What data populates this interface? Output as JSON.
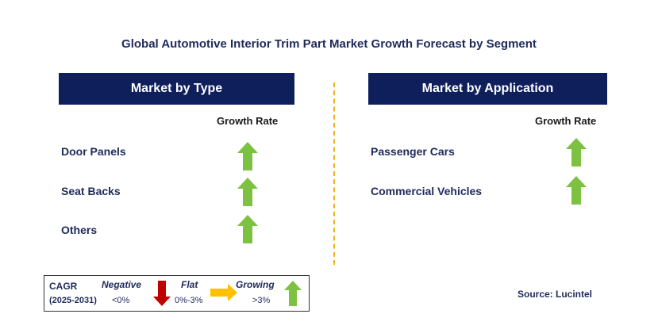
{
  "title": "Global Automotive Interior Trim Part Market Growth Forecast by Segment",
  "left_panel": {
    "header": "Market by Type",
    "growth_rate_label": "Growth Rate",
    "rows": [
      {
        "label": "Door Panels",
        "trend": "growing"
      },
      {
        "label": "Seat Backs",
        "trend": "growing"
      },
      {
        "label": "Others",
        "trend": "growing"
      }
    ]
  },
  "right_panel": {
    "header": "Market by Application",
    "growth_rate_label": "Growth Rate",
    "rows": [
      {
        "label": "Passenger Cars",
        "trend": "growing"
      },
      {
        "label": "Commercial Vehicles",
        "trend": "growing"
      }
    ]
  },
  "legend": {
    "cagr": "CAGR",
    "period": "(2025-2031)",
    "negative_label": "Negative",
    "negative_range": "<0%",
    "flat_label": "Flat",
    "flat_range": "0%-3%",
    "growing_label": "Growing",
    "growing_range": ">3%"
  },
  "source": "Source: Lucintel",
  "colors": {
    "header_bg": "#0f1f5c",
    "growing": "#7dc142",
    "negative": "#c00000",
    "flat": "#ffc000",
    "divider": "#f2b01e"
  }
}
